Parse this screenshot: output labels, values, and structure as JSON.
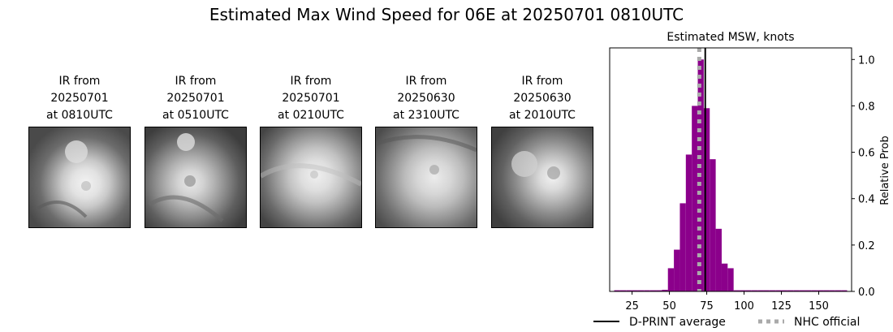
{
  "title": "Estimated Max Wind Speed for 06E at 20250701 0810UTC",
  "panels": [
    {
      "line1": "IR from",
      "line2": "20250701",
      "line3": "at 0810UTC"
    },
    {
      "line1": "IR from",
      "line2": "20250701",
      "line3": "at 0510UTC"
    },
    {
      "line1": "IR from",
      "line2": "20250701",
      "line3": "at 0210UTC"
    },
    {
      "line1": "IR from",
      "line2": "20250630",
      "line3": "at 2310UTC"
    },
    {
      "line1": "IR from",
      "line2": "20250630",
      "line3": "at 2010UTC"
    }
  ],
  "chart_data": {
    "type": "bar",
    "title": "Estimated MSW, knots",
    "ylabel": "Relative Prob",
    "xlim": [
      10,
      172
    ],
    "ylim": [
      0,
      1.05
    ],
    "x_ticks": [
      25,
      50,
      75,
      100,
      125,
      150
    ],
    "y_ticks": [
      "0.0",
      "0.2",
      "0.4",
      "0.6",
      "0.8",
      "1.0"
    ],
    "bin_width": 4,
    "bins": [
      {
        "x": 15,
        "value": 0.005
      },
      {
        "x": 19,
        "value": 0.005
      },
      {
        "x": 23,
        "value": 0.005
      },
      {
        "x": 27,
        "value": 0.005
      },
      {
        "x": 31,
        "value": 0.005
      },
      {
        "x": 35,
        "value": 0.005
      },
      {
        "x": 39,
        "value": 0.005
      },
      {
        "x": 43,
        "value": 0.005
      },
      {
        "x": 47,
        "value": 0.007
      },
      {
        "x": 51,
        "value": 0.1
      },
      {
        "x": 55,
        "value": 0.18
      },
      {
        "x": 59,
        "value": 0.38
      },
      {
        "x": 63,
        "value": 0.59
      },
      {
        "x": 67,
        "value": 0.8
      },
      {
        "x": 71,
        "value": 1.0
      },
      {
        "x": 75,
        "value": 0.79
      },
      {
        "x": 79,
        "value": 0.57
      },
      {
        "x": 83,
        "value": 0.27
      },
      {
        "x": 87,
        "value": 0.12
      },
      {
        "x": 91,
        "value": 0.1
      },
      {
        "x": 95,
        "value": 0.005
      },
      {
        "x": 99,
        "value": 0.005
      },
      {
        "x": 103,
        "value": 0.005
      },
      {
        "x": 107,
        "value": 0.005
      },
      {
        "x": 111,
        "value": 0.005
      },
      {
        "x": 115,
        "value": 0.005
      },
      {
        "x": 119,
        "value": 0.005
      },
      {
        "x": 123,
        "value": 0.005
      },
      {
        "x": 127,
        "value": 0.005
      },
      {
        "x": 131,
        "value": 0.005
      },
      {
        "x": 135,
        "value": 0.005
      },
      {
        "x": 139,
        "value": 0.005
      },
      {
        "x": 143,
        "value": 0.005
      },
      {
        "x": 147,
        "value": 0.005
      },
      {
        "x": 151,
        "value": 0.005
      },
      {
        "x": 155,
        "value": 0.005
      },
      {
        "x": 159,
        "value": 0.005
      },
      {
        "x": 163,
        "value": 0.005
      },
      {
        "x": 167,
        "value": 0.005
      }
    ],
    "dprint_average": 74,
    "nhc_official": 70,
    "bar_color": "#8b008b",
    "dprint_color": "#000000",
    "nhc_color": "#aaaaaa",
    "legend": [
      {
        "label": "D-PRINT average"
      },
      {
        "label": "NHC official"
      }
    ]
  }
}
